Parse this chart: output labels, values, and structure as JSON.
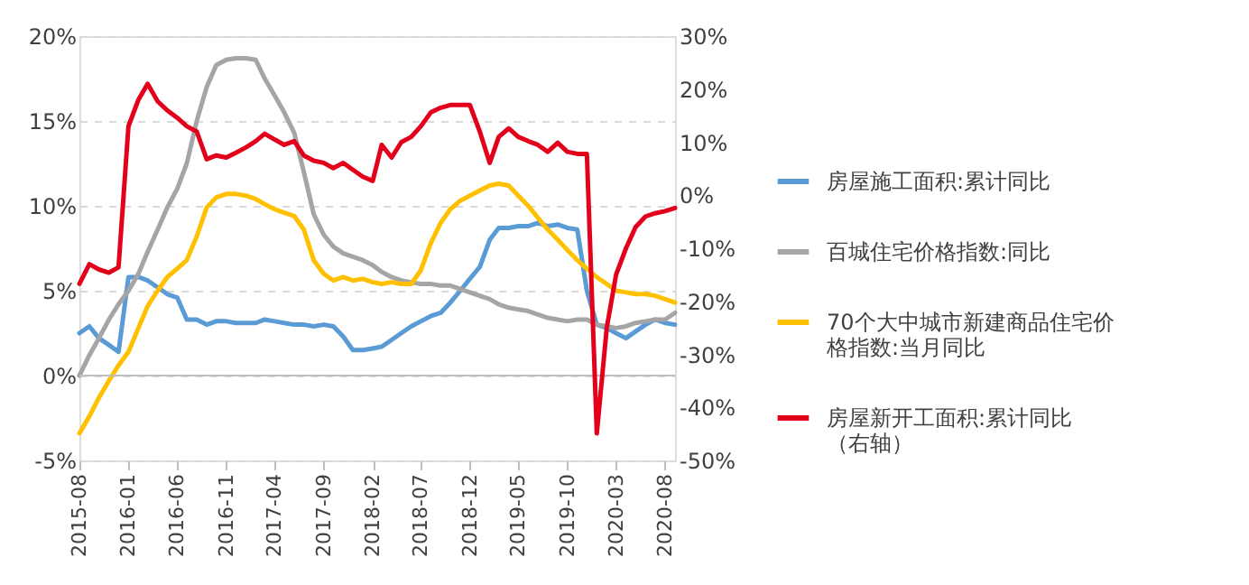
{
  "chart_data": {
    "type": "line",
    "x": [
      "2015-08",
      "2015-09",
      "2015-10",
      "2015-11",
      "2015-12",
      "2016-01",
      "2016-02",
      "2016-03",
      "2016-04",
      "2016-05",
      "2016-06",
      "2016-07",
      "2016-08",
      "2016-09",
      "2016-10",
      "2016-11",
      "2016-12",
      "2017-01",
      "2017-02",
      "2017-03",
      "2017-04",
      "2017-05",
      "2017-06",
      "2017-07",
      "2017-08",
      "2017-09",
      "2017-10",
      "2017-11",
      "2017-12",
      "2018-01",
      "2018-02",
      "2018-03",
      "2018-04",
      "2018-05",
      "2018-06",
      "2018-07",
      "2018-08",
      "2018-09",
      "2018-10",
      "2018-11",
      "2018-12",
      "2019-01",
      "2019-02",
      "2019-03",
      "2019-04",
      "2019-05",
      "2019-06",
      "2019-07",
      "2019-08",
      "2019-09",
      "2019-10",
      "2019-11",
      "2019-12",
      "2020-01",
      "2020-02",
      "2020-03",
      "2020-04",
      "2020-05",
      "2020-06",
      "2020-07",
      "2020-08",
      "2020-09"
    ],
    "series": [
      {
        "name": "房屋施工面积:累计同比",
        "color": "#5b9bd5",
        "values": [
          2.5,
          2.9,
          2.2,
          1.8,
          1.4,
          5.8,
          5.8,
          5.6,
          5.2,
          4.8,
          4.6,
          3.3,
          3.3,
          3.0,
          3.2,
          3.2,
          3.1,
          3.1,
          3.1,
          3.3,
          3.2,
          3.1,
          3.0,
          3.0,
          2.9,
          3.0,
          2.9,
          2.3,
          1.5,
          1.5,
          1.6,
          1.7,
          2.1,
          2.5,
          2.9,
          3.2,
          3.5,
          3.7,
          4.3,
          5.0,
          5.7,
          6.4,
          8.0,
          8.7,
          8.7,
          8.8,
          8.8,
          9.0,
          8.8,
          8.9,
          8.7,
          8.6,
          5.0,
          3.0,
          2.8,
          2.5,
          2.2,
          2.6,
          3.0,
          3.3,
          3.1,
          3.0
        ]
      },
      {
        "name": "百城住宅价格指数:同比",
        "color": "#a5a5a5",
        "values": [
          0,
          1.2,
          2.2,
          3.3,
          4.2,
          5.0,
          6.0,
          7.3,
          8.6,
          9.9,
          11.0,
          12.5,
          15.0,
          17.0,
          18.3,
          18.6,
          18.7,
          18.7,
          18.6,
          17.5,
          16.5,
          15.5,
          14.3,
          12.0,
          9.5,
          8.3,
          7.6,
          7.2,
          7.0,
          6.8,
          6.5,
          6.1,
          5.8,
          5.6,
          5.5,
          5.4,
          5.4,
          5.3,
          5.3,
          5.1,
          4.9,
          4.7,
          4.5,
          4.2,
          4.0,
          3.9,
          3.8,
          3.6,
          3.4,
          3.3,
          3.2,
          3.3,
          3.3,
          3.0,
          2.9,
          2.8,
          2.9,
          3.1,
          3.2,
          3.3,
          3.3,
          3.7
        ]
      },
      {
        "name": "70个大中城市新建商品住宅价格指数:当月同比",
        "color": "#ffc000",
        "values": [
          -3.4,
          -2.4,
          -1.3,
          -0.3,
          0.6,
          1.4,
          2.8,
          4.1,
          5.0,
          5.8,
          6.3,
          6.8,
          8.2,
          9.9,
          10.5,
          10.7,
          10.7,
          10.6,
          10.4,
          10.1,
          9.8,
          9.6,
          9.4,
          8.6,
          6.8,
          6.0,
          5.6,
          5.8,
          5.6,
          5.7,
          5.5,
          5.4,
          5.5,
          5.4,
          5.4,
          6.2,
          7.8,
          9.0,
          9.8,
          10.3,
          10.6,
          10.9,
          11.2,
          11.3,
          11.2,
          10.6,
          10.0,
          9.3,
          8.6,
          8.0,
          7.4,
          6.8,
          6.3,
          5.8,
          5.4,
          5.0,
          4.9,
          4.8,
          4.8,
          4.7,
          4.5,
          4.3
        ]
      },
      {
        "name": "房屋新开工面积:累计同比（右轴）",
        "color": "#e3001b",
        "axis": "y2",
        "values": [
          -16.7,
          -13,
          -14,
          -14.6,
          -13.6,
          13,
          18,
          21,
          17.7,
          16,
          14.6,
          13,
          12,
          6.8,
          7.5,
          7.1,
          8,
          9,
          10.2,
          11.6,
          10.5,
          9.5,
          10.2,
          7.5,
          6.5,
          6.1,
          5.1,
          6.1,
          4.8,
          3.5,
          2.7,
          9.5,
          7.1,
          10,
          11,
          13,
          15.6,
          16.5,
          17,
          17,
          17,
          12,
          6.1,
          11,
          12.6,
          11,
          10.2,
          9.5,
          8.2,
          9.9,
          8.2,
          7.8,
          7.8,
          -44.9,
          -25,
          -15,
          -10,
          -6,
          -4,
          -3.4,
          -3,
          -2.4
        ]
      }
    ],
    "xlim": [
      "2015-08",
      "2020-09"
    ],
    "xticks": [
      "2015-08",
      "2016-01",
      "2016-06",
      "2016-11",
      "2017-04",
      "2017-09",
      "2018-02",
      "2018-07",
      "2018-12",
      "2019-05",
      "2019-10",
      "2020-03",
      "2020-08"
    ],
    "ylim": [
      -5,
      20
    ],
    "yticks": [
      {
        "value": -5,
        "label": "-5%"
      },
      {
        "value": 0,
        "label": "0%"
      },
      {
        "value": 5,
        "label": "5%"
      },
      {
        "value": 10,
        "label": "10%"
      },
      {
        "value": 15,
        "label": "15%"
      },
      {
        "value": 20,
        "label": "20%"
      }
    ],
    "y2lim": [
      -50,
      30
    ],
    "y2ticks": [
      {
        "value": -50,
        "label": "-50%"
      },
      {
        "value": -40,
        "label": "-40%"
      },
      {
        "value": -30,
        "label": "-30%"
      },
      {
        "value": -20,
        "label": "-20%"
      },
      {
        "value": -10,
        "label": "-10%"
      },
      {
        "value": 0,
        "label": "0%"
      },
      {
        "value": 10,
        "label": "10%"
      },
      {
        "value": 20,
        "label": "20%"
      },
      {
        "value": 30,
        "label": "30%"
      }
    ],
    "ref_lines": [
      {
        "axis": "y",
        "value": 0,
        "color": "#bfbfbf"
      }
    ],
    "grid": "y",
    "legend": "right",
    "line_style": "solid",
    "marker": "none"
  }
}
